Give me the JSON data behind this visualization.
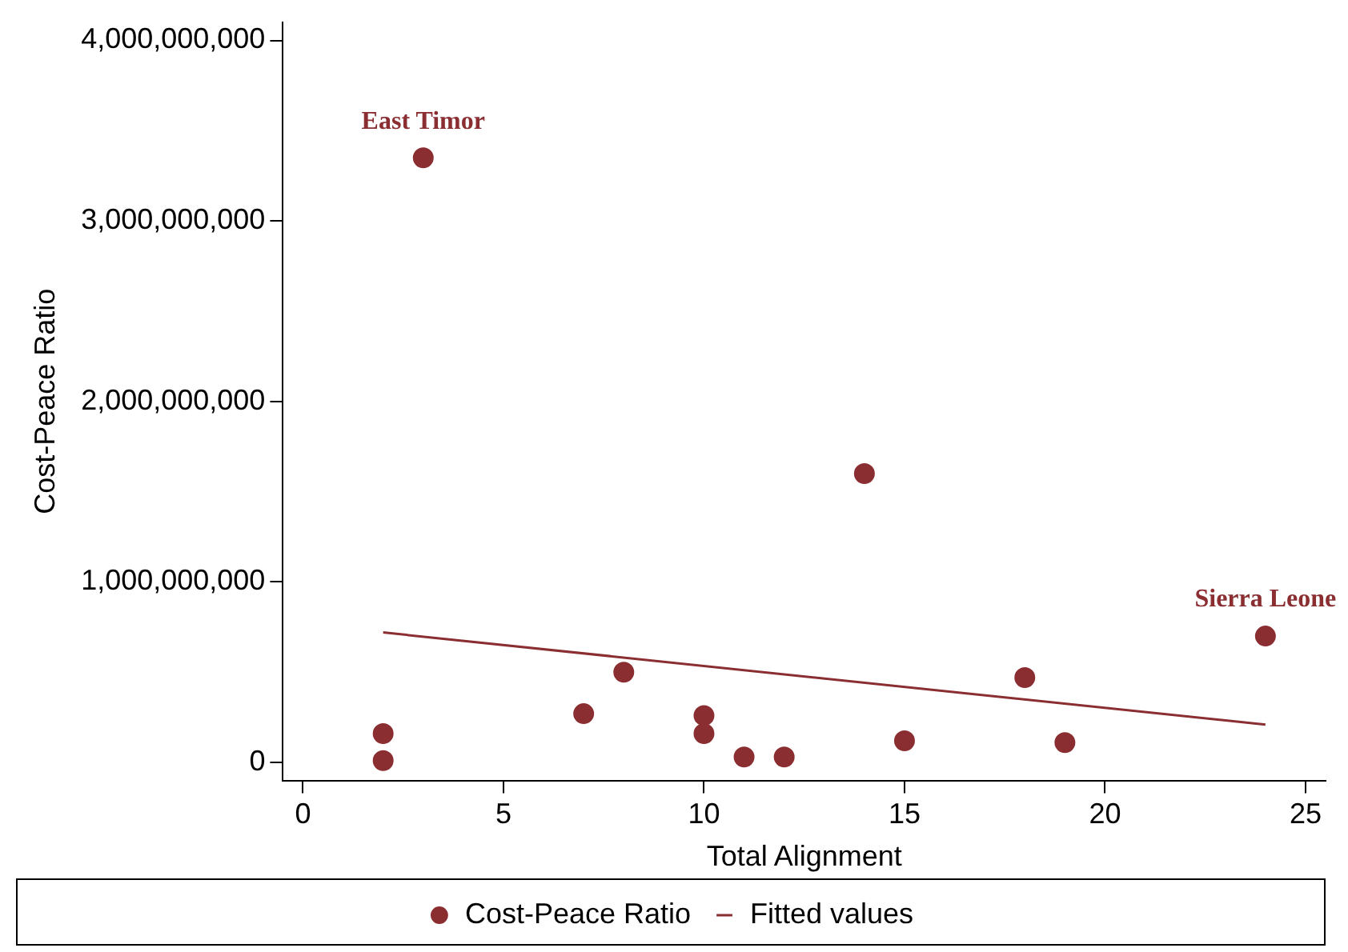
{
  "chart_data": {
    "type": "scatter",
    "xlabel": "Total Alignment",
    "ylabel": "Cost-Peace Ratio",
    "xlim": [
      -0.5,
      25.5
    ],
    "xticks": [
      0,
      5,
      10,
      15,
      20,
      25
    ],
    "ylim": [
      -100000000,
      4100000000
    ],
    "yticks": [
      0,
      {
        "value": 1000000000,
        "label": "1,000,000,000"
      },
      {
        "value": 2000000000,
        "label": "2,000,000,000"
      },
      {
        "value": 3000000000,
        "label": "3,000,000,000"
      },
      {
        "value": 4000000000,
        "label": "4,000,000,000"
      }
    ],
    "grid": false,
    "legend": "bottom",
    "marker": "circle",
    "series": [
      {
        "name": "Cost-Peace Ratio",
        "type": "scatter",
        "color": "#8b2e32",
        "x": [
          2,
          2,
          3,
          7,
          8,
          10,
          10,
          11,
          12,
          14,
          15,
          18,
          19,
          24
        ],
        "values": [
          160000000,
          10000000,
          3350000000,
          270000000,
          500000000,
          260000000,
          160000000,
          30000000,
          30000000,
          1600000000,
          120000000,
          470000000,
          110000000,
          700000000
        ]
      },
      {
        "name": "Fitted values",
        "type": "line",
        "color": "#8b2e32",
        "marker": "none",
        "line_style": "solid",
        "x": [
          2,
          24
        ],
        "values": [
          720000000,
          210000000
        ]
      }
    ],
    "annotations": [
      {
        "text": "East Timor",
        "x": 3,
        "y": 3350000000
      },
      {
        "text": "Sierra Leone",
        "x": 24,
        "y": 705000000
      }
    ]
  }
}
